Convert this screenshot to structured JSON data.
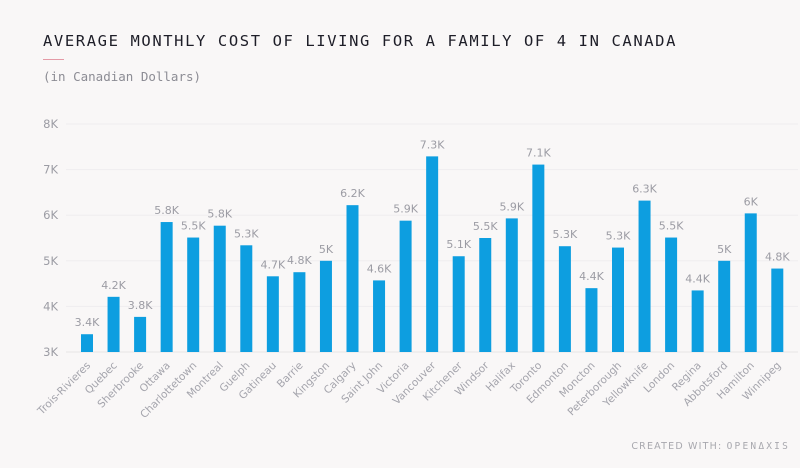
{
  "chart_data": {
    "type": "bar",
    "title": "AVERAGE MONTHLY COST OF LIVING FOR A FAMILY OF 4 IN CANADA",
    "subtitle": "(in Canadian Dollars)",
    "xlabel": "",
    "ylabel": "",
    "ylim": [
      3000,
      8000
    ],
    "yticks": [
      3000,
      4000,
      5000,
      6000,
      7000,
      8000
    ],
    "ytick_labels": [
      "3K",
      "4K",
      "5K",
      "6K",
      "7K",
      "8K"
    ],
    "grid": true,
    "legend": "none",
    "bar_color": "#0d9ee0",
    "categories": [
      "Trois-Rivieres",
      "Quebec",
      "Sherbrooke",
      "Ottawa",
      "Charlottetown",
      "Montreal",
      "Guelph",
      "Gatineau",
      "Barrie",
      "Kingston",
      "Calgary",
      "Saint John",
      "Victoria",
      "Vancouver",
      "Kitchener",
      "Windsor",
      "Halifax",
      "Toronto",
      "Edmonton",
      "Moncton",
      "Peterborough",
      "Yellowknife",
      "London",
      "Regina",
      "Abbotsford",
      "Hamilton",
      "Winnipeg"
    ],
    "values": [
      3390,
      4210,
      3770,
      5850,
      5510,
      5770,
      5340,
      4660,
      4750,
      5000,
      6220,
      4570,
      5880,
      7290,
      5100,
      5500,
      5930,
      7110,
      5320,
      4400,
      5290,
      6320,
      5510,
      4350,
      5000,
      6040,
      4830
    ],
    "data_labels": [
      "3.4K",
      "4.2K",
      "3.8K",
      "5.8K",
      "5.5K",
      "5.8K",
      "5.3K",
      "4.7K",
      "4.8K",
      "5K",
      "6.2K",
      "4.6K",
      "5.9K",
      "7.3K",
      "5.1K",
      "5.5K",
      "5.9K",
      "7.1K",
      "5.3K",
      "4.4K",
      "5.3K",
      "6.3K",
      "5.5K",
      "4.4K",
      "5K",
      "6K",
      "4.8K"
    ]
  },
  "footer": {
    "created_with": "CREATED WITH:",
    "brand": "OPENΔXIS"
  }
}
